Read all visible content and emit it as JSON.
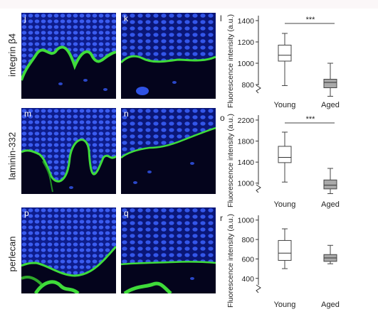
{
  "rows": [
    {
      "label": "integrin β4",
      "left_panel": "j",
      "right_panel": "k",
      "plot_label": "l"
    },
    {
      "label": "laminin-332",
      "left_panel": "m",
      "right_panel": "n",
      "plot_label": "o"
    },
    {
      "label": "perlecan",
      "left_panel": "p",
      "right_panel": "q",
      "plot_label": "r"
    }
  ],
  "colors": {
    "nuclei": "#2b4fe0",
    "stain": "#3fdc3a",
    "background": "#04041c",
    "aged_box": "#a9a9a9"
  },
  "chart_data": [
    {
      "type": "box",
      "panel": "l",
      "ylabel": "Fluorescence intensity (a.u.)",
      "categories": [
        "Young",
        "Aged"
      ],
      "yticks": [
        800,
        1000,
        1200,
        1400
      ],
      "ylim": [
        700,
        1420
      ],
      "axis_break": true,
      "significance": "***",
      "boxes": [
        {
          "name": "Young",
          "min": 790,
          "q1": 1020,
          "median": 1075,
          "q3": 1170,
          "max": 1280
        },
        {
          "name": "Aged",
          "min": 690,
          "q1": 770,
          "median": 820,
          "q3": 850,
          "max": 1000
        }
      ]
    },
    {
      "type": "box",
      "panel": "o",
      "ylabel": "Fluorescence intensity (a.u.)",
      "categories": [
        "Young",
        "Aged"
      ],
      "yticks": [
        1000,
        1400,
        1800,
        2200
      ],
      "ylim": [
        780,
        2240
      ],
      "axis_break": true,
      "significance": "***",
      "boxes": [
        {
          "name": "Young",
          "min": 1020,
          "q1": 1390,
          "median": 1490,
          "q3": 1700,
          "max": 1970
        },
        {
          "name": "Aged",
          "min": 800,
          "q1": 890,
          "median": 960,
          "q3": 1060,
          "max": 1280
        }
      ]
    },
    {
      "type": "box",
      "panel": "r",
      "ylabel": "Fluorescence intensity (a.u.)",
      "categories": [
        "Young",
        "Aged"
      ],
      "yticks": [
        400,
        600,
        800,
        1000
      ],
      "ylim": [
        230,
        1020
      ],
      "axis_break": true,
      "significance": "",
      "boxes": [
        {
          "name": "Young",
          "min": 500,
          "q1": 585,
          "median": 660,
          "q3": 790,
          "max": 910
        },
        {
          "name": "Aged",
          "min": 550,
          "q1": 575,
          "median": 610,
          "q3": 645,
          "max": 740
        }
      ]
    }
  ]
}
